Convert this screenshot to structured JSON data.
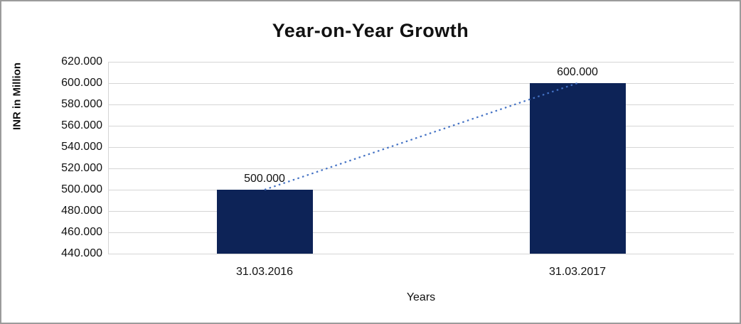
{
  "chart_data": {
    "type": "bar",
    "title": "Year-on-Year Growth",
    "categories": [
      "31.03.2016",
      "31.03.2017"
    ],
    "values": [
      500000,
      600000
    ],
    "value_labels": [
      "500.000",
      "600.000"
    ],
    "xlabel": "Years",
    "ylabel": "INR in Million",
    "ylim": [
      440000,
      620000
    ],
    "ytick_step": 20000,
    "ytick_labels": [
      "440.000",
      "460.000",
      "480.000",
      "500.000",
      "520.000",
      "540.000",
      "560.000",
      "580.000",
      "600.000",
      "620.000"
    ],
    "grid": true,
    "legend": "none",
    "bar_color": "#0d2357",
    "trendline_color": "#4472c4",
    "trendline_style": "dotted"
  }
}
